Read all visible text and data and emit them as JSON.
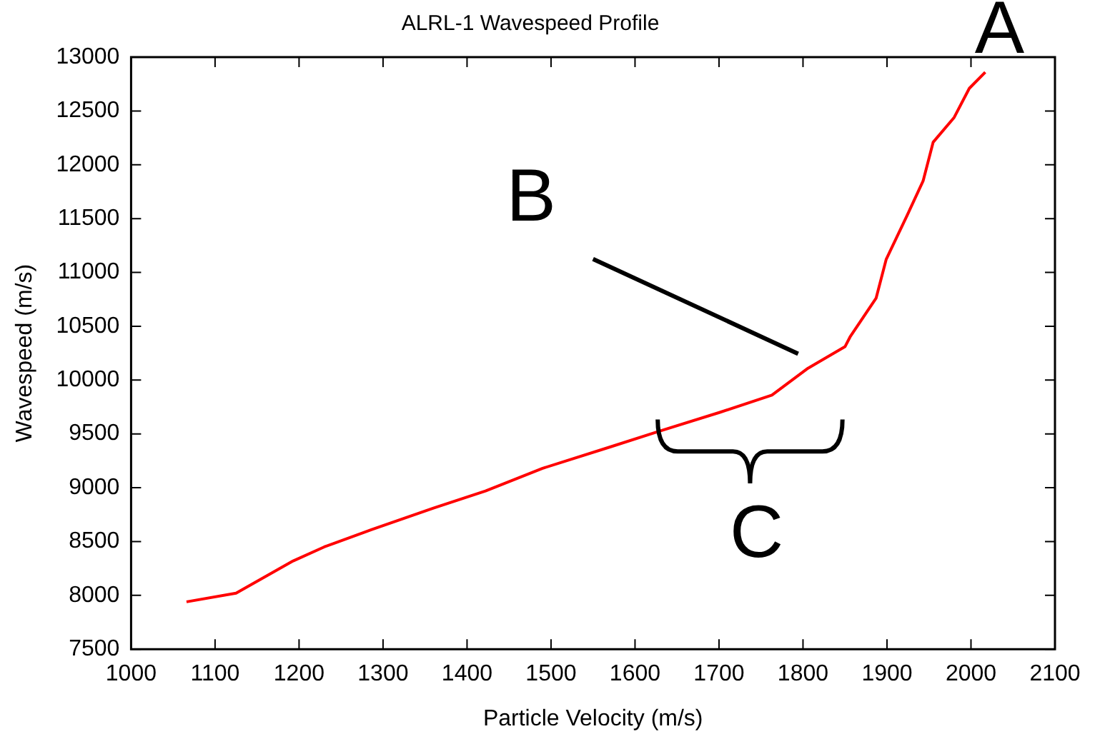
{
  "chart_data": {
    "type": "line",
    "title": "ALRL-1 Wavespeed Profile",
    "xlabel": "Particle Velocity (m/s)",
    "ylabel": "Wavespeed (m/s)",
    "x": [
      1066,
      1125,
      1193,
      1230,
      1286,
      1360,
      1422,
      1490,
      1571,
      1627,
      1701,
      1763,
      1806,
      1850,
      1856,
      1887,
      1899,
      1924,
      1943,
      1955,
      1980,
      1998,
      2017
    ],
    "series": [
      {
        "color": "#ff0000",
        "values": [
          7940,
          8020,
          8320,
          8450,
          8610,
          8810,
          8970,
          9180,
          9380,
          9520,
          9700,
          9860,
          10110,
          10310,
          10400,
          10760,
          11120,
          11530,
          11850,
          12210,
          12440,
          12710,
          12860
        ]
      }
    ],
    "xlim": [
      1000,
      2100
    ],
    "xticks": [
      1000,
      1100,
      1200,
      1300,
      1400,
      1500,
      1600,
      1700,
      1800,
      1900,
      2000,
      2100
    ],
    "ylim": [
      7500,
      13000
    ],
    "yticks": [
      7500,
      8000,
      8500,
      9000,
      9500,
      10000,
      10500,
      11000,
      11500,
      12000,
      12500,
      13000
    ],
    "annotations": [
      {
        "text": "A",
        "x": 2017,
        "y": 12859
      },
      "B",
      "C"
    ],
    "grid": false,
    "legend": false,
    "marker": "none",
    "line_style": "solid"
  }
}
